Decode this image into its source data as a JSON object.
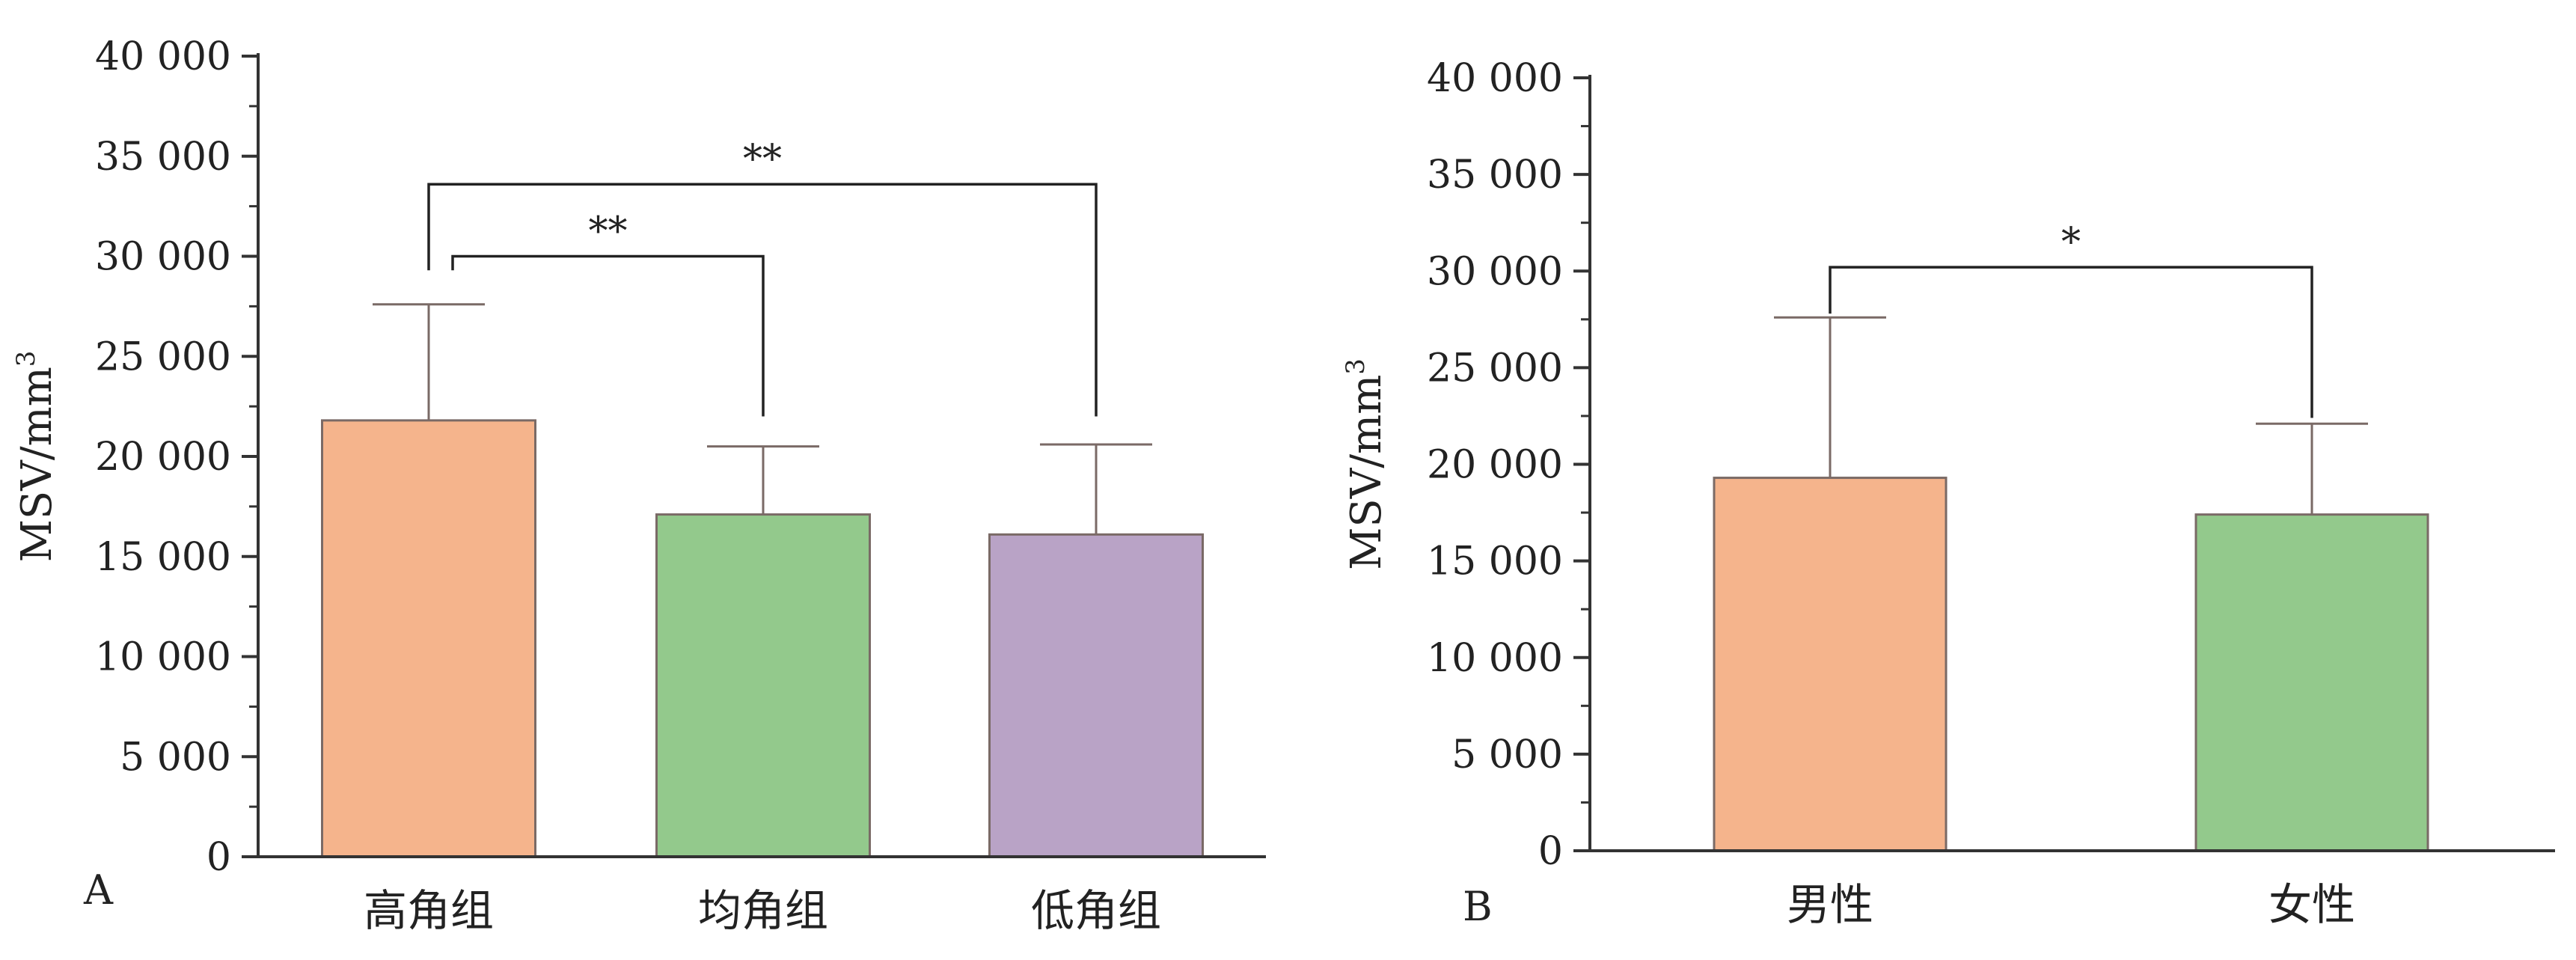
{
  "chart_data": [
    {
      "type": "bar",
      "panel": "A",
      "categories": [
        "高角组",
        "均角组",
        "低角组"
      ],
      "values": [
        21800,
        17100,
        16100
      ],
      "errors": [
        5800,
        3400,
        4500
      ],
      "ylabel": "MSV/mm",
      "ylabel_sup": "3",
      "ylim": [
        0,
        40000
      ],
      "yticks": [
        0,
        5000,
        10000,
        15000,
        20000,
        25000,
        30000,
        35000,
        40000
      ],
      "ytick_labels": [
        "0",
        "5 000",
        "10 000",
        "15 000",
        "20 000",
        "25 000",
        "30 000",
        "35 000",
        "40 000"
      ],
      "minor_ticks": true,
      "grid": false,
      "colors": [
        "#F5B48C",
        "#93C98C",
        "#B9A3C6"
      ],
      "significance": [
        {
          "from": 0,
          "to": 1,
          "label": "**",
          "level": 30000,
          "drop_from": 29300,
          "drop_to": 22000
        },
        {
          "from": 0,
          "to": 2,
          "label": "**",
          "level": 33600,
          "drop_from": 29300,
          "drop_to": 22000
        }
      ]
    },
    {
      "type": "bar",
      "panel": "B",
      "categories": [
        "男性",
        "女性"
      ],
      "values": [
        19300,
        17400
      ],
      "errors": [
        8300,
        4700
      ],
      "ylabel": "MSV/mm",
      "ylabel_sup": "3",
      "ylim": [
        0,
        40000
      ],
      "yticks": [
        0,
        5000,
        10000,
        15000,
        20000,
        25000,
        30000,
        35000,
        40000
      ],
      "ytick_labels": [
        "0",
        "5 000",
        "10 000",
        "15 000",
        "20 000",
        "25 000",
        "30 000",
        "35 000",
        "40 000"
      ],
      "minor_ticks": true,
      "grid": false,
      "colors": [
        "#F5B48C",
        "#93C98C"
      ],
      "significance": [
        {
          "from": 0,
          "to": 1,
          "label": "*",
          "level": 30200,
          "drop_from": 27800,
          "drop_to": 22400
        }
      ]
    }
  ]
}
